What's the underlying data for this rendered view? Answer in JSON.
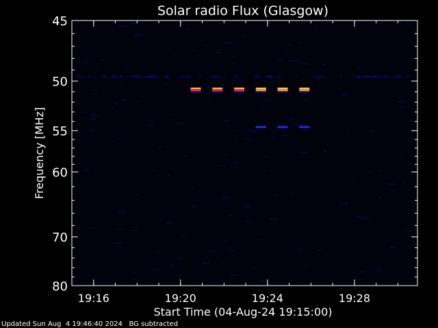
{
  "chart_data": {
    "type": "heatmap",
    "title": "Solar radio Flux (Glasgow)",
    "xlabel": "Start Time (04-Aug-24 19:15:00)",
    "ylabel": "Frequency [MHz]",
    "xlim_minutes": [
      19.25,
      19.515
    ],
    "x_ticks": [
      {
        "label": "19:16",
        "value": 19.2667
      },
      {
        "label": "19:20",
        "value": 19.3333
      },
      {
        "label": "19:24",
        "value": 19.4
      },
      {
        "label": "19:28",
        "value": 19.4667
      }
    ],
    "ylim": [
      45,
      80
    ],
    "y_scale": "reciprocal",
    "y_ticks": [
      45,
      50,
      55,
      60,
      70,
      80
    ],
    "colors": {
      "background": "#000000",
      "axis": "#ffffff",
      "text": "#ffffff",
      "high_red": "#ff3b1f",
      "high_orange": "#ffa020",
      "low_blue": "#1a1aff",
      "faint_blue": "#0a0a5a"
    },
    "bursts": [
      {
        "time": "19:20:42",
        "freq_mhz": 50.8,
        "intensity": "high",
        "color": "#ff3020"
      },
      {
        "time": "19:21:42",
        "freq_mhz": 50.8,
        "intensity": "high",
        "color": "#ff3020"
      },
      {
        "time": "19:22:42",
        "freq_mhz": 50.8,
        "intensity": "high",
        "color": "#ff3020"
      },
      {
        "time": "19:23:42",
        "freq_mhz": 50.8,
        "intensity": "high",
        "color": "#ffa020"
      },
      {
        "time": "19:24:42",
        "freq_mhz": 50.8,
        "intensity": "high",
        "color": "#ffa020"
      },
      {
        "time": "19:25:42",
        "freq_mhz": 50.8,
        "intensity": "high",
        "color": "#ffa020"
      },
      {
        "time": "19:23:42",
        "freq_mhz": 54.6,
        "intensity": "medium",
        "color": "#1a2aff"
      },
      {
        "time": "19:24:42",
        "freq_mhz": 54.6,
        "intensity": "medium",
        "color": "#1a2aff"
      },
      {
        "time": "19:25:42",
        "freq_mhz": 54.6,
        "intensity": "medium",
        "color": "#1a2aff"
      }
    ]
  },
  "footer": {
    "updated": "Updated Sun Aug  4 19:46:40 2024",
    "note": "BG subtracted"
  }
}
